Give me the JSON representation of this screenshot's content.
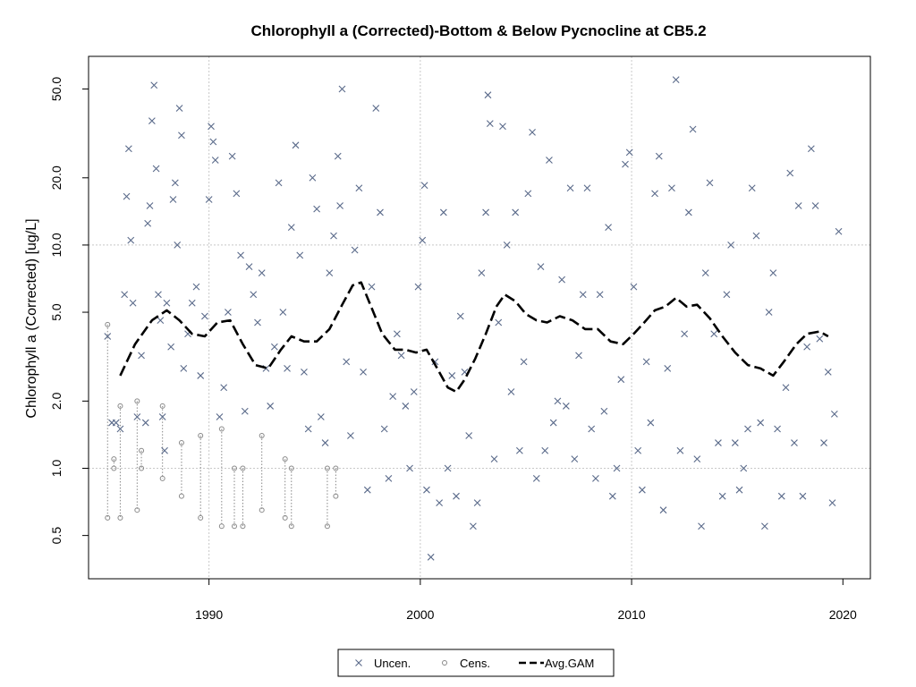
{
  "chart_data": {
    "type": "scatter",
    "title": "Chlorophyll a (Corrected)-Bottom & Below Pycnocline at CB5.2",
    "xlabel": "",
    "ylabel": "Chlorophyll a (Corrected) [ug/L]",
    "x_ticks": [
      1990,
      2000,
      2010,
      2020
    ],
    "y_ticks": [
      {
        "value": 0.5,
        "label": "0.5"
      },
      {
        "value": 1,
        "label": "1.0"
      },
      {
        "value": 2,
        "label": "2.0"
      },
      {
        "value": 5,
        "label": "5.0"
      },
      {
        "value": 10,
        "label": "10.0"
      },
      {
        "value": 20,
        "label": "20.0"
      },
      {
        "value": 50,
        "label": "50.0"
      }
    ],
    "xlim": [
      1984.3,
      2021.3
    ],
    "ylim": [
      0.32,
      70
    ],
    "y_scale": "log",
    "grid": true,
    "legend_position": "bottom",
    "legend": [
      {
        "label": "Uncen.",
        "marker": "x",
        "color": "#5a6a8a"
      },
      {
        "label": "Cens.",
        "marker": "o",
        "color": "#888888"
      },
      {
        "label": "Avg.GAM",
        "marker": "dashed-line",
        "color": "#000000"
      }
    ],
    "series": [
      {
        "name": "Uncen.",
        "marker": "x",
        "color": "#5a6a8a",
        "points": [
          [
            1985.2,
            3.9
          ],
          [
            1985.4,
            1.6
          ],
          [
            1985.6,
            1.6
          ],
          [
            1985.8,
            1.5
          ],
          [
            1986.0,
            6.0
          ],
          [
            1986.1,
            16.5
          ],
          [
            1986.2,
            27.0
          ],
          [
            1986.3,
            10.5
          ],
          [
            1986.4,
            5.5
          ],
          [
            1986.6,
            1.7
          ],
          [
            1986.8,
            3.2
          ],
          [
            1987.0,
            1.6
          ],
          [
            1987.1,
            12.5
          ],
          [
            1987.2,
            15.0
          ],
          [
            1987.3,
            36.0
          ],
          [
            1987.4,
            52.0
          ],
          [
            1987.5,
            22.0
          ],
          [
            1987.6,
            6.0
          ],
          [
            1987.7,
            4.6
          ],
          [
            1987.8,
            1.7
          ],
          [
            1987.9,
            1.2
          ],
          [
            1988.0,
            5.5
          ],
          [
            1988.2,
            3.5
          ],
          [
            1988.3,
            16.0
          ],
          [
            1988.4,
            19.0
          ],
          [
            1988.5,
            10.0
          ],
          [
            1988.6,
            41.0
          ],
          [
            1988.7,
            31.0
          ],
          [
            1988.8,
            2.8
          ],
          [
            1989.0,
            4.0
          ],
          [
            1989.2,
            5.5
          ],
          [
            1989.4,
            6.5
          ],
          [
            1989.6,
            2.6
          ],
          [
            1989.8,
            4.8
          ],
          [
            1990.0,
            16.0
          ],
          [
            1990.1,
            34.0
          ],
          [
            1990.2,
            29.0
          ],
          [
            1990.3,
            24.0
          ],
          [
            1990.5,
            1.7
          ],
          [
            1990.7,
            2.3
          ],
          [
            1990.9,
            5.0
          ],
          [
            1991.1,
            25.0
          ],
          [
            1991.3,
            17.0
          ],
          [
            1991.5,
            9.0
          ],
          [
            1991.7,
            1.8
          ],
          [
            1991.9,
            8.0
          ],
          [
            1992.1,
            6.0
          ],
          [
            1992.3,
            4.5
          ],
          [
            1992.5,
            7.5
          ],
          [
            1992.7,
            2.8
          ],
          [
            1992.9,
            1.9
          ],
          [
            1993.1,
            3.5
          ],
          [
            1993.3,
            19.0
          ],
          [
            1993.5,
            5.0
          ],
          [
            1993.7,
            2.8
          ],
          [
            1993.9,
            12.0
          ],
          [
            1994.1,
            28.0
          ],
          [
            1994.3,
            9.0
          ],
          [
            1994.5,
            2.7
          ],
          [
            1994.7,
            1.5
          ],
          [
            1994.9,
            20.0
          ],
          [
            1995.1,
            14.5
          ],
          [
            1995.3,
            1.7
          ],
          [
            1995.5,
            1.3
          ],
          [
            1995.7,
            7.5
          ],
          [
            1995.9,
            11.0
          ],
          [
            1996.1,
            25.0
          ],
          [
            1996.2,
            15.0
          ],
          [
            1996.3,
            50.0
          ],
          [
            1996.5,
            3.0
          ],
          [
            1996.7,
            1.4
          ],
          [
            1996.9,
            9.5
          ],
          [
            1997.1,
            18.0
          ],
          [
            1997.3,
            2.7
          ],
          [
            1997.5,
            0.8
          ],
          [
            1997.7,
            6.5
          ],
          [
            1997.9,
            41.0
          ],
          [
            1998.1,
            14.0
          ],
          [
            1998.3,
            1.5
          ],
          [
            1998.5,
            0.9
          ],
          [
            1998.7,
            2.1
          ],
          [
            1998.9,
            4.0
          ],
          [
            1999.1,
            3.2
          ],
          [
            1999.3,
            1.9
          ],
          [
            1999.5,
            1.0
          ],
          [
            1999.7,
            2.2
          ],
          [
            1999.9,
            6.5
          ],
          [
            2000.1,
            10.5
          ],
          [
            2000.2,
            18.5
          ],
          [
            2000.3,
            0.8
          ],
          [
            2000.5,
            0.4
          ],
          [
            2000.7,
            3.0
          ],
          [
            2000.9,
            0.7
          ],
          [
            2001.1,
            14.0
          ],
          [
            2001.3,
            1.0
          ],
          [
            2001.5,
            2.6
          ],
          [
            2001.7,
            0.75
          ],
          [
            2001.9,
            4.8
          ],
          [
            2002.1,
            2.7
          ],
          [
            2002.3,
            1.4
          ],
          [
            2002.5,
            0.55
          ],
          [
            2002.7,
            0.7
          ],
          [
            2002.9,
            7.5
          ],
          [
            2003.1,
            14.0
          ],
          [
            2003.2,
            47.0
          ],
          [
            2003.3,
            35.0
          ],
          [
            2003.5,
            1.1
          ],
          [
            2003.7,
            4.5
          ],
          [
            2003.9,
            34.0
          ],
          [
            2004.1,
            10.0
          ],
          [
            2004.3,
            2.2
          ],
          [
            2004.5,
            14.0
          ],
          [
            2004.7,
            1.2
          ],
          [
            2004.9,
            3.0
          ],
          [
            2005.1,
            17.0
          ],
          [
            2005.3,
            32.0
          ],
          [
            2005.5,
            0.9
          ],
          [
            2005.7,
            8.0
          ],
          [
            2005.9,
            1.2
          ],
          [
            2006.1,
            24.0
          ],
          [
            2006.3,
            1.6
          ],
          [
            2006.5,
            2.0
          ],
          [
            2006.7,
            7.0
          ],
          [
            2006.9,
            1.9
          ],
          [
            2007.1,
            18.0
          ],
          [
            2007.3,
            1.1
          ],
          [
            2007.5,
            3.2
          ],
          [
            2007.7,
            6.0
          ],
          [
            2007.9,
            18.0
          ],
          [
            2008.1,
            1.5
          ],
          [
            2008.3,
            0.9
          ],
          [
            2008.5,
            6.0
          ],
          [
            2008.7,
            1.8
          ],
          [
            2008.9,
            12.0
          ],
          [
            2009.1,
            0.75
          ],
          [
            2009.3,
            1.0
          ],
          [
            2009.5,
            2.5
          ],
          [
            2009.7,
            23.0
          ],
          [
            2009.9,
            26.0
          ],
          [
            2010.1,
            6.5
          ],
          [
            2010.3,
            1.2
          ],
          [
            2010.5,
            0.8
          ],
          [
            2010.7,
            3.0
          ],
          [
            2010.9,
            1.6
          ],
          [
            2011.1,
            17.0
          ],
          [
            2011.3,
            25.0
          ],
          [
            2011.5,
            0.65
          ],
          [
            2011.7,
            2.8
          ],
          [
            2011.9,
            18.0
          ],
          [
            2012.1,
            55.0
          ],
          [
            2012.3,
            1.2
          ],
          [
            2012.5,
            4.0
          ],
          [
            2012.7,
            14.0
          ],
          [
            2012.9,
            33.0
          ],
          [
            2013.1,
            1.1
          ],
          [
            2013.3,
            0.55
          ],
          [
            2013.5,
            7.5
          ],
          [
            2013.7,
            19.0
          ],
          [
            2013.9,
            4.0
          ],
          [
            2014.1,
            1.3
          ],
          [
            2014.3,
            0.75
          ],
          [
            2014.5,
            6.0
          ],
          [
            2014.7,
            10.0
          ],
          [
            2014.9,
            1.3
          ],
          [
            2015.1,
            0.8
          ],
          [
            2015.3,
            1.0
          ],
          [
            2015.5,
            1.5
          ],
          [
            2015.7,
            18.0
          ],
          [
            2015.9,
            11.0
          ],
          [
            2016.1,
            1.6
          ],
          [
            2016.3,
            0.55
          ],
          [
            2016.5,
            5.0
          ],
          [
            2016.7,
            7.5
          ],
          [
            2016.9,
            1.5
          ],
          [
            2017.1,
            0.75
          ],
          [
            2017.3,
            2.3
          ],
          [
            2017.5,
            21.0
          ],
          [
            2017.7,
            1.3
          ],
          [
            2017.9,
            15.0
          ],
          [
            2018.1,
            0.75
          ],
          [
            2018.3,
            3.5
          ],
          [
            2018.5,
            27.0
          ],
          [
            2018.7,
            15.0
          ],
          [
            2018.9,
            3.8
          ],
          [
            2019.1,
            1.3
          ],
          [
            2019.3,
            2.7
          ],
          [
            2019.5,
            0.7
          ],
          [
            2019.6,
            1.75
          ],
          [
            2019.8,
            11.5
          ]
        ]
      },
      {
        "name": "Cens.",
        "marker": "o",
        "color": "#888888",
        "censored_ranges": [
          [
            1985.2,
            4.4,
            0.6
          ],
          [
            1985.5,
            1.1,
            1.0
          ],
          [
            1985.8,
            1.9,
            0.6
          ],
          [
            1986.6,
            2.0,
            0.65
          ],
          [
            1986.8,
            1.2,
            1.0
          ],
          [
            1987.8,
            1.9,
            0.9
          ],
          [
            1988.7,
            1.3,
            0.75
          ],
          [
            1989.6,
            1.4,
            0.6
          ],
          [
            1990.6,
            1.5,
            0.55
          ],
          [
            1991.2,
            1.0,
            0.55
          ],
          [
            1991.6,
            1.0,
            0.55
          ],
          [
            1992.5,
            1.4,
            0.65
          ],
          [
            1993.6,
            1.1,
            0.6
          ],
          [
            1993.9,
            1.0,
            0.55
          ],
          [
            1995.6,
            1.0,
            0.55
          ],
          [
            1996.0,
            1.0,
            0.75
          ]
        ]
      },
      {
        "name": "Avg.GAM",
        "style": "dashed",
        "color": "#000000",
        "x": [
          1985.8,
          1986.5,
          1987.3,
          1988.0,
          1988.6,
          1989.2,
          1989.8,
          1990.4,
          1991.0,
          1991.6,
          1992.2,
          1992.8,
          1993.4,
          1993.9,
          1994.5,
          1995.1,
          1995.7,
          1996.3,
          1996.8,
          1997.2,
          1997.6,
          1998.2,
          1998.8,
          1999.3,
          1999.8,
          2000.3,
          2000.8,
          2001.3,
          2001.7,
          2002.1,
          2002.6,
          2003.1,
          2003.6,
          2004.0,
          2004.5,
          2005.0,
          2005.5,
          2006.0,
          2006.6,
          2007.2,
          2007.8,
          2008.4,
          2009.0,
          2009.6,
          2010.1,
          2010.6,
          2011.1,
          2011.6,
          2012.1,
          2012.6,
          2013.1,
          2013.7,
          2014.3,
          2014.9,
          2015.5,
          2016.1,
          2016.7,
          2017.2,
          2017.8,
          2018.3,
          2018.9,
          2019.3
        ],
        "y": [
          2.6,
          3.6,
          4.6,
          5.1,
          4.6,
          4.0,
          3.9,
          4.5,
          4.6,
          3.6,
          2.9,
          2.8,
          3.4,
          3.9,
          3.7,
          3.7,
          4.2,
          5.4,
          6.6,
          6.8,
          5.5,
          4.0,
          3.4,
          3.4,
          3.3,
          3.4,
          2.8,
          2.3,
          2.2,
          2.5,
          3.1,
          4.0,
          5.3,
          6.0,
          5.6,
          4.9,
          4.6,
          4.5,
          4.8,
          4.6,
          4.2,
          4.2,
          3.7,
          3.6,
          4.0,
          4.5,
          5.1,
          5.3,
          5.8,
          5.3,
          5.4,
          4.7,
          3.9,
          3.3,
          2.9,
          2.8,
          2.6,
          3.0,
          3.6,
          4.0,
          4.1,
          3.9
        ]
      }
    ]
  }
}
